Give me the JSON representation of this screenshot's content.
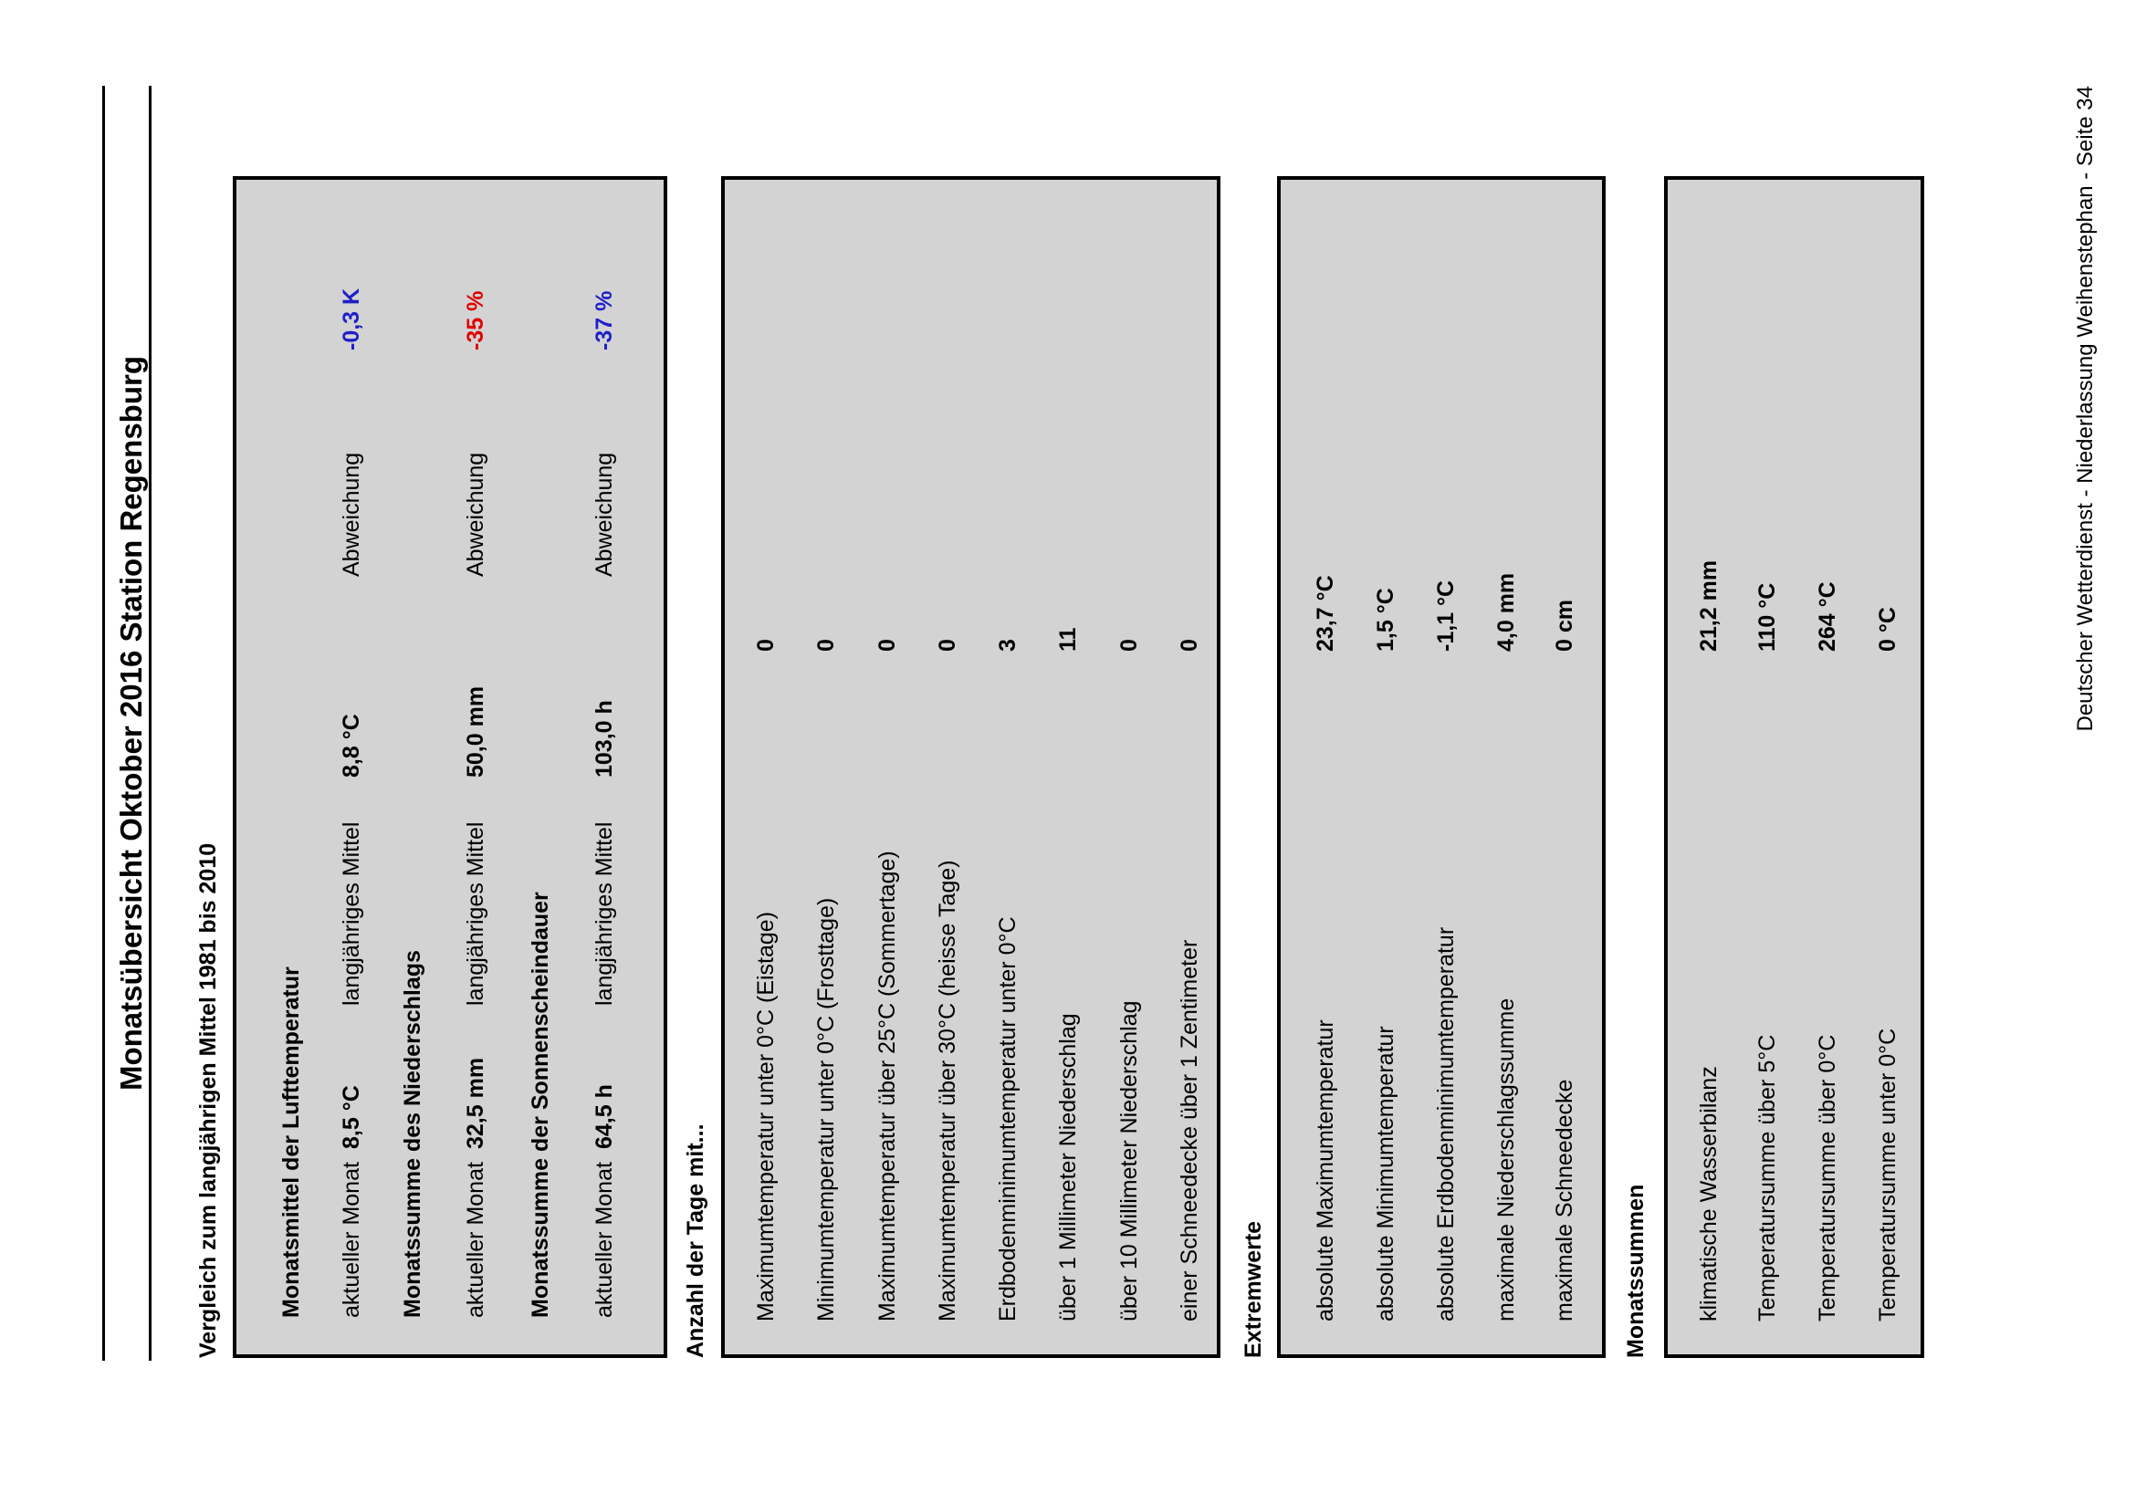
{
  "title": "Monatsübersicht Oktober 2016 Station Regensburg",
  "comparison": {
    "heading": "Vergleich zum langjährigen Mittel 1981 bis 2010",
    "sections": [
      {
        "heading": "Monatsmittel der Lufttemperatur",
        "current_label": "aktueller Monat",
        "current_value": "8,5 °C",
        "mean_label": "langjähriges Mittel",
        "mean_value": "8,8 °C",
        "deviation_label": "Abweichung",
        "deviation_value": "-0,3  K",
        "deviation_color": "#1f1fc8"
      },
      {
        "heading": "Monatssumme des Niederschlags",
        "current_label": "aktueller Monat",
        "current_value": "32,5 mm",
        "mean_label": "langjähriges Mittel",
        "mean_value": "50,0 mm",
        "deviation_label": "Abweichung",
        "deviation_value": "-35 %",
        "deviation_color": "#e00000"
      },
      {
        "heading": "Monatssumme der Sonnenscheindauer",
        "current_label": "aktueller Monat",
        "current_value": "64,5 h",
        "mean_label": "langjähriges Mittel",
        "mean_value": "103,0 h",
        "deviation_label": "Abweichung",
        "deviation_value": "-37 %",
        "deviation_color": "#1f1fc8"
      }
    ]
  },
  "days": {
    "heading": "Anzahl der Tage mit...",
    "rows": [
      {
        "label": "Maximumtemperatur unter 0°C (Eistage)",
        "value": "0"
      },
      {
        "label": "Minimumtemperatur unter 0°C (Frosttage)",
        "value": "0"
      },
      {
        "label": "Maximumtemperatur über 25°C (Sommertage)",
        "value": "0"
      },
      {
        "label": "Maximumtemperatur über 30°C (heisse Tage)",
        "value": "0"
      },
      {
        "label": "Erdbodenminimumtemperatur unter 0°C",
        "value": "3"
      },
      {
        "label": "über 1 Millimeter Niederschlag",
        "value": "11"
      },
      {
        "label": "über 10 Millimeter Niederschlag",
        "value": "0"
      },
      {
        "label": "einer Schneedecke über 1 Zentimeter",
        "value": "0"
      }
    ]
  },
  "extremes": {
    "heading": "Extremwerte",
    "rows": [
      {
        "label": "absolute Maximumtemperatur",
        "value": "23,7  °C"
      },
      {
        "label": "absolute Minimumtemperatur",
        "value": "1,5  °C"
      },
      {
        "label": "absolute Erdbodenminimumtemperatur",
        "value": "-1,1  °C"
      },
      {
        "label": "maximale Niederschlagssumme",
        "value": "4,0  mm"
      },
      {
        "label": "maximale  Schneedecke",
        "value": "0 cm"
      }
    ]
  },
  "sums": {
    "heading": "Monatssummen",
    "rows": [
      {
        "label": "klimatische Wasserbilanz",
        "value": "21,2  mm"
      },
      {
        "label": "Temperatursumme über 5°C",
        "value": "110  °C"
      },
      {
        "label": "Temperatursumme über 0°C",
        "value": "264  °C"
      },
      {
        "label": "Temperatursumme unter 0°C",
        "value": "0  °C"
      }
    ]
  },
  "footer": "Deutscher Wetterdienst - Niederlassung Weihenstephan - Seite 34"
}
